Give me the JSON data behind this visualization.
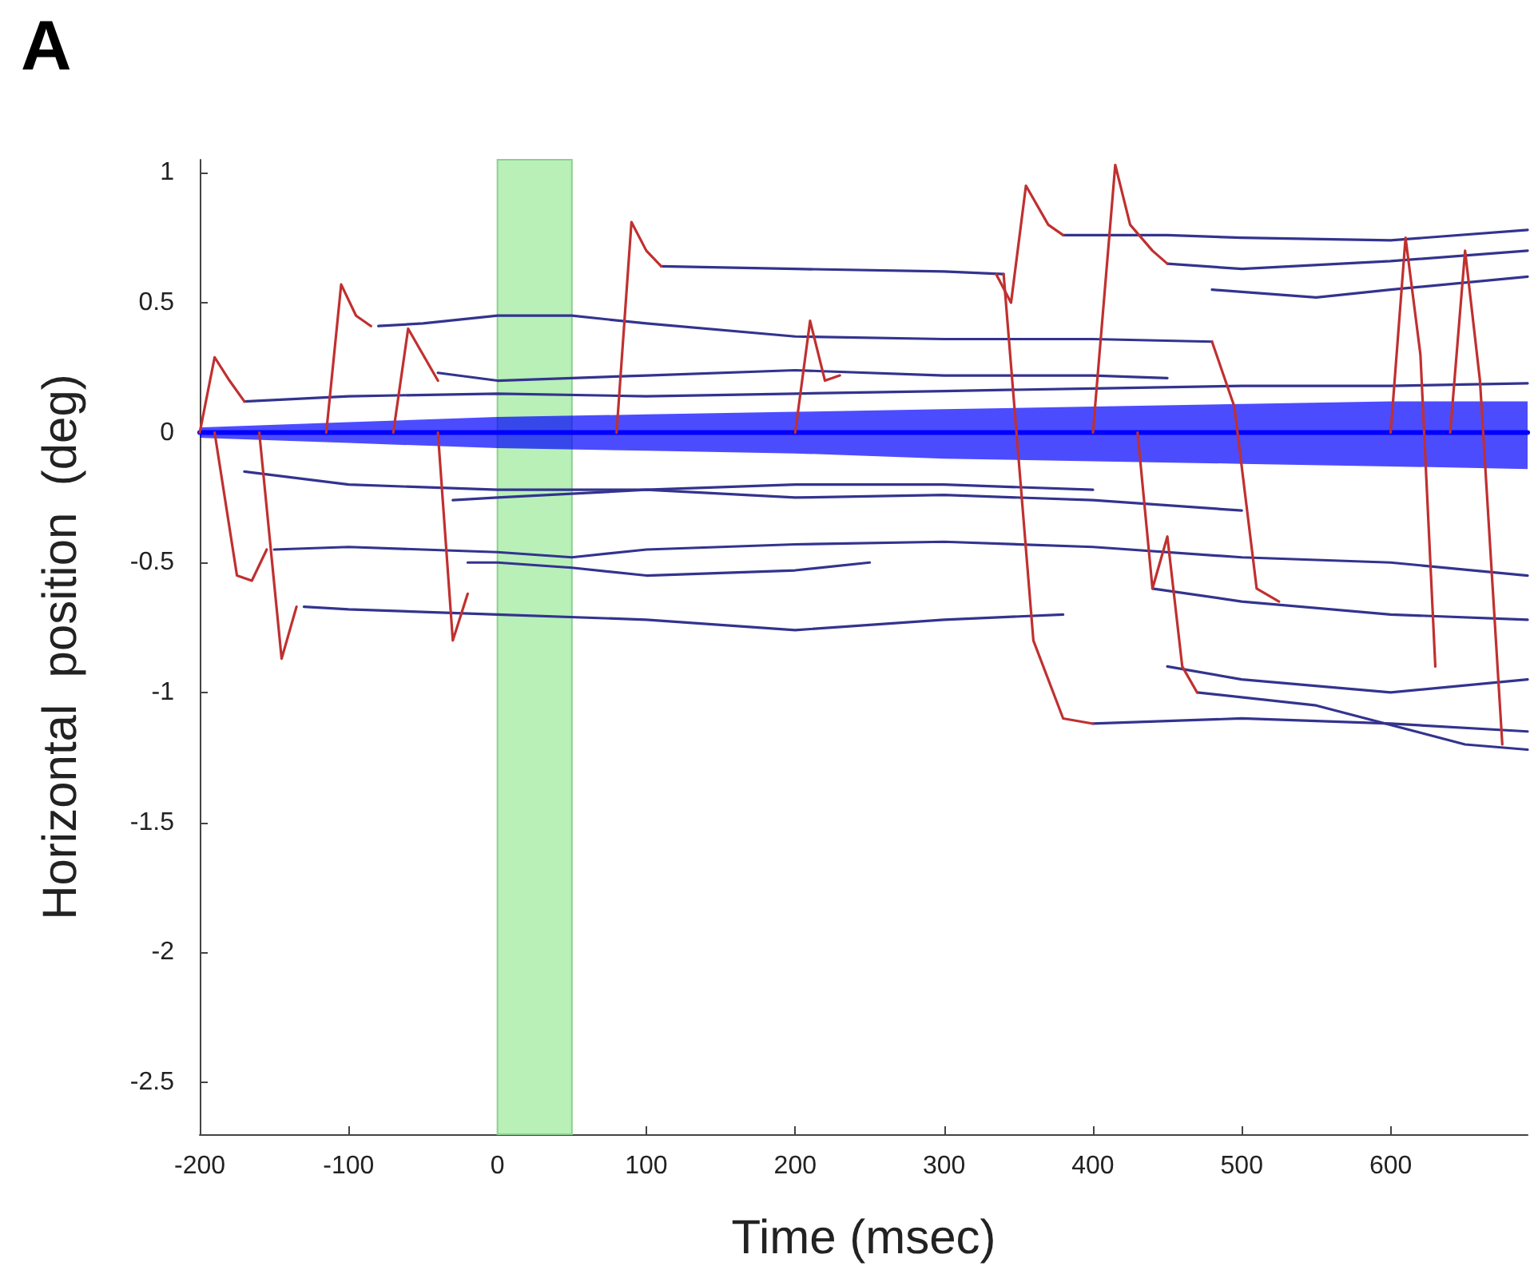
{
  "chart_data": {
    "type": "line",
    "title": "A",
    "xlabel": "Time (msec)",
    "ylabel": "Horizontal  position  (deg)",
    "xlim": [
      -200,
      692
    ],
    "xticks": [
      -200,
      -100,
      0,
      100,
      200,
      300,
      400,
      500,
      600
    ],
    "ylim": [
      -2.7,
      1.05
    ],
    "yticks": [
      -2.5,
      -2,
      -1.5,
      -1,
      -0.5,
      0,
      0.5,
      1
    ],
    "marker": "none",
    "line_style": "solid",
    "bands": [
      {
        "axis": "x",
        "from": 0,
        "to": 50,
        "color": "#b8f0b8"
      }
    ],
    "series": [
      {
        "color": "#0000ff",
        "x": [
          -200,
          -100,
          0,
          100,
          200,
          300,
          400,
          500,
          600,
          692
        ],
        "values": [
          0,
          0,
          0,
          0,
          0,
          0,
          0,
          0,
          0,
          0
        ],
        "lower": [
          -0.02,
          -0.04,
          -0.06,
          -0.07,
          -0.08,
          -0.1,
          -0.11,
          -0.12,
          -0.13,
          -0.14
        ],
        "upper": [
          0.02,
          0.04,
          0.06,
          0.07,
          0.08,
          0.09,
          0.1,
          0.11,
          0.12,
          0.12
        ]
      },
      {
        "color": "#33338f",
        "x": [
          -170,
          -100,
          0,
          100,
          200,
          300,
          400,
          500,
          600,
          692
        ],
        "values": [
          0.12,
          0.14,
          0.15,
          0.14,
          0.15,
          0.16,
          0.17,
          0.18,
          0.18,
          0.19
        ]
      },
      {
        "color": "#33338f",
        "x": [
          -80,
          -50,
          0,
          50,
          100,
          200,
          300,
          400,
          480
        ],
        "values": [
          0.41,
          0.42,
          0.45,
          0.45,
          0.42,
          0.37,
          0.36,
          0.36,
          0.35
        ]
      },
      {
        "color": "#33338f",
        "x": [
          -40,
          0,
          50,
          100,
          200,
          300,
          400,
          450
        ],
        "values": [
          0.23,
          0.2,
          0.21,
          0.22,
          0.24,
          0.22,
          0.22,
          0.21
        ]
      },
      {
        "color": "#33338f",
        "x": [
          110,
          200,
          300,
          340
        ],
        "values": [
          0.64,
          0.63,
          0.62,
          0.61
        ]
      },
      {
        "color": "#33338f",
        "x": [
          400,
          500,
          600,
          692
        ],
        "values": [
          -1.12,
          -1.1,
          -1.12,
          -1.15
        ]
      },
      {
        "color": "#33338f",
        "x": [
          -170,
          -100,
          0,
          100,
          200,
          300,
          400
        ],
        "values": [
          -0.15,
          -0.2,
          -0.22,
          -0.22,
          -0.2,
          -0.2,
          -0.22
        ]
      },
      {
        "color": "#33338f",
        "x": [
          -30,
          0,
          100,
          200,
          300,
          400,
          500
        ],
        "values": [
          -0.26,
          -0.25,
          -0.22,
          -0.25,
          -0.24,
          -0.26,
          -0.3
        ]
      },
      {
        "color": "#33338f",
        "x": [
          -150,
          -100,
          0,
          50,
          100,
          200,
          300,
          400,
          500,
          600,
          692
        ],
        "values": [
          -0.45,
          -0.44,
          -0.46,
          -0.48,
          -0.45,
          -0.43,
          -0.42,
          -0.44,
          -0.48,
          -0.5,
          -0.55
        ]
      },
      {
        "color": "#33338f",
        "x": [
          -20,
          0,
          50,
          100,
          200,
          250
        ],
        "values": [
          -0.5,
          -0.5,
          -0.52,
          -0.55,
          -0.53,
          -0.5
        ]
      },
      {
        "color": "#33338f",
        "x": [
          -130,
          -100,
          0,
          100,
          200,
          300,
          380
        ],
        "values": [
          -0.67,
          -0.68,
          -0.7,
          -0.72,
          -0.76,
          -0.72,
          -0.7
        ]
      },
      {
        "color": "#33338f",
        "x": [
          380,
          450,
          500,
          600,
          692
        ],
        "values": [
          0.76,
          0.76,
          0.75,
          0.74,
          0.78
        ]
      },
      {
        "color": "#33338f",
        "x": [
          450,
          500,
          600,
          692
        ],
        "values": [
          0.65,
          0.63,
          0.66,
          0.7
        ]
      },
      {
        "color": "#33338f",
        "x": [
          480,
          550,
          600,
          692
        ],
        "values": [
          0.55,
          0.52,
          0.55,
          0.6
        ]
      },
      {
        "color": "#33338f",
        "x": [
          450,
          500,
          600,
          692
        ],
        "values": [
          -0.9,
          -0.95,
          -1.0,
          -0.95
        ]
      },
      {
        "color": "#33338f",
        "x": [
          470,
          550,
          650,
          692
        ],
        "values": [
          -1.0,
          -1.05,
          -1.2,
          -1.22
        ]
      },
      {
        "color": "#33338f",
        "x": [
          440,
          500,
          600,
          692
        ],
        "values": [
          -0.6,
          -0.65,
          -0.7,
          -0.72
        ]
      },
      {
        "color": "#c03030",
        "x": [
          -200,
          -190,
          -180,
          -170
        ],
        "values": [
          0,
          0.29,
          0.2,
          0.12
        ]
      },
      {
        "color": "#c03030",
        "x": [
          -190,
          -175,
          -165,
          -155
        ],
        "values": [
          0,
          -0.55,
          -0.57,
          -0.45
        ]
      },
      {
        "color": "#c03030",
        "x": [
          -160,
          -145,
          -135
        ],
        "values": [
          0,
          -0.87,
          -0.67
        ]
      },
      {
        "color": "#c03030",
        "x": [
          -115,
          -105,
          -95,
          -85
        ],
        "values": [
          0,
          0.57,
          0.45,
          0.41
        ]
      },
      {
        "color": "#c03030",
        "x": [
          -70,
          -60,
          -50,
          -40
        ],
        "values": [
          0,
          0.4,
          0.3,
          0.2
        ]
      },
      {
        "color": "#c03030",
        "x": [
          -40,
          -30,
          -20
        ],
        "values": [
          0,
          -0.8,
          -0.62
        ]
      },
      {
        "color": "#c03030",
        "x": [
          80,
          90,
          100,
          110
        ],
        "values": [
          0,
          0.81,
          0.7,
          0.64
        ]
      },
      {
        "color": "#c03030",
        "x": [
          200,
          210,
          220,
          230
        ],
        "values": [
          0,
          0.43,
          0.2,
          0.22
        ]
      },
      {
        "color": "#c03030",
        "x": [
          335,
          345,
          355,
          370,
          380
        ],
        "values": [
          0.61,
          0.5,
          0.95,
          0.8,
          0.76
        ]
      },
      {
        "color": "#c03030",
        "x": [
          340,
          360,
          380,
          400
        ],
        "values": [
          0.61,
          -0.8,
          -1.1,
          -1.12
        ]
      },
      {
        "color": "#c03030",
        "x": [
          400,
          415,
          425,
          440,
          450
        ],
        "values": [
          0,
          1.03,
          0.8,
          0.7,
          0.65
        ]
      },
      {
        "color": "#c03030",
        "x": [
          430,
          440,
          450,
          460,
          470
        ],
        "values": [
          0,
          -0.6,
          -0.4,
          -0.9,
          -1.0
        ]
      },
      {
        "color": "#c03030",
        "x": [
          480,
          495,
          510,
          525
        ],
        "values": [
          0.35,
          0.1,
          -0.6,
          -0.65
        ]
      },
      {
        "color": "#c03030",
        "x": [
          600,
          610,
          620,
          630
        ],
        "values": [
          0,
          0.75,
          0.3,
          -0.9
        ]
      },
      {
        "color": "#c03030",
        "x": [
          640,
          650,
          660,
          675
        ],
        "values": [
          0,
          0.7,
          0.2,
          -1.2
        ]
      }
    ]
  }
}
